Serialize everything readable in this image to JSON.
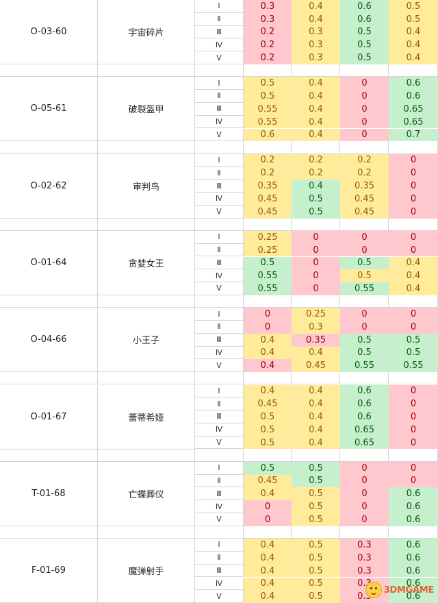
{
  "levels": [
    "Ⅰ",
    "Ⅱ",
    "Ⅲ",
    "Ⅳ",
    "Ⅴ"
  ],
  "colors": {
    "pink": "#ffc7ce",
    "yellow": "#ffeb9c",
    "green": "#c6efce"
  },
  "rows": [
    {
      "code": "O-03-60",
      "name": "宇宙碎片",
      "values": [
        [
          "0.3",
          "0.4",
          "0.6",
          "0.5"
        ],
        [
          "0.3",
          "0.4",
          "0.6",
          "0.5"
        ],
        [
          "0.2",
          "0.3",
          "0.5",
          "0.4"
        ],
        [
          "0.2",
          "0.3",
          "0.5",
          "0.4"
        ],
        [
          "0.2",
          "0.3",
          "0.5",
          "0.4"
        ]
      ],
      "colors": [
        [
          "pink",
          "yellow",
          "green",
          "yellow"
        ],
        [
          "pink",
          "yellow",
          "green",
          "yellow"
        ],
        [
          "pink",
          "yellow",
          "green",
          "yellow"
        ],
        [
          "pink",
          "yellow",
          "green",
          "yellow"
        ],
        [
          "pink",
          "yellow",
          "green",
          "yellow"
        ]
      ]
    },
    {
      "code": "O-05-61",
      "name": "破裂盔甲",
      "values": [
        [
          "0.5",
          "0.4",
          "0",
          "0.6"
        ],
        [
          "0.5",
          "0.4",
          "0",
          "0.6"
        ],
        [
          "0.55",
          "0.4",
          "0",
          "0.65"
        ],
        [
          "0.55",
          "0.4",
          "0",
          "0.65"
        ],
        [
          "0.6",
          "0.4",
          "0",
          "0.7"
        ]
      ],
      "colors": [
        [
          "yellow",
          "yellow",
          "pink",
          "green"
        ],
        [
          "yellow",
          "yellow",
          "pink",
          "green"
        ],
        [
          "yellow",
          "yellow",
          "pink",
          "green"
        ],
        [
          "yellow",
          "yellow",
          "pink",
          "green"
        ],
        [
          "yellow",
          "yellow",
          "pink",
          "green"
        ]
      ]
    },
    {
      "code": "O-02-62",
      "name": "审判鸟",
      "values": [
        [
          "0.2",
          "0.2",
          "0.2",
          "0"
        ],
        [
          "0.2",
          "0.2",
          "0.2",
          "0"
        ],
        [
          "0.35",
          "0.4",
          "0.35",
          "0"
        ],
        [
          "0.45",
          "0.5",
          "0.45",
          "0"
        ],
        [
          "0.45",
          "0.5",
          "0.45",
          "0"
        ]
      ],
      "colors": [
        [
          "yellow",
          "yellow",
          "yellow",
          "pink"
        ],
        [
          "yellow",
          "yellow",
          "yellow",
          "pink"
        ],
        [
          "yellow",
          "green",
          "yellow",
          "pink"
        ],
        [
          "yellow",
          "green",
          "yellow",
          "pink"
        ],
        [
          "yellow",
          "green",
          "yellow",
          "pink"
        ]
      ]
    },
    {
      "code": "O-01-64",
      "name": "贪婪女王",
      "values": [
        [
          "0.25",
          "0",
          "0",
          "0"
        ],
        [
          "0.25",
          "0",
          "0",
          "0"
        ],
        [
          "0.5",
          "0",
          "0.5",
          "0.4"
        ],
        [
          "0.55",
          "0",
          "0.5",
          "0.4"
        ],
        [
          "0.55",
          "0",
          "0.55",
          "0.4"
        ]
      ],
      "colors": [
        [
          "yellow",
          "pink",
          "pink",
          "pink"
        ],
        [
          "yellow",
          "pink",
          "pink",
          "pink"
        ],
        [
          "green",
          "pink",
          "green",
          "yellow"
        ],
        [
          "green",
          "pink",
          "yellow",
          "yellow"
        ],
        [
          "green",
          "pink",
          "green",
          "yellow"
        ]
      ]
    },
    {
      "code": "O-04-66",
      "name": "小王子",
      "values": [
        [
          "0",
          "0.25",
          "0",
          "0"
        ],
        [
          "0",
          "0.3",
          "0",
          "0"
        ],
        [
          "0.4",
          "0.35",
          "0.5",
          "0.5"
        ],
        [
          "0.4",
          "0.4",
          "0.5",
          "0.5"
        ],
        [
          "0.4",
          "0.45",
          "0.55",
          "0.55"
        ]
      ],
      "colors": [
        [
          "pink",
          "yellow",
          "pink",
          "pink"
        ],
        [
          "pink",
          "yellow",
          "pink",
          "pink"
        ],
        [
          "yellow",
          "pink",
          "green",
          "green"
        ],
        [
          "yellow",
          "yellow",
          "green",
          "green"
        ],
        [
          "pink",
          "yellow",
          "green",
          "green"
        ]
      ]
    },
    {
      "code": "O-01-67",
      "name": "蕾蒂希娅",
      "values": [
        [
          "0.4",
          "0.4",
          "0.6",
          "0"
        ],
        [
          "0.45",
          "0.4",
          "0.6",
          "0"
        ],
        [
          "0.5",
          "0.4",
          "0.6",
          "0"
        ],
        [
          "0.5",
          "0.4",
          "0.65",
          "0"
        ],
        [
          "0.5",
          "0.4",
          "0.65",
          "0"
        ]
      ],
      "colors": [
        [
          "yellow",
          "yellow",
          "green",
          "pink"
        ],
        [
          "yellow",
          "yellow",
          "green",
          "pink"
        ],
        [
          "yellow",
          "yellow",
          "green",
          "pink"
        ],
        [
          "yellow",
          "yellow",
          "green",
          "pink"
        ],
        [
          "yellow",
          "yellow",
          "green",
          "pink"
        ]
      ]
    },
    {
      "code": "T-01-68",
      "name": "亡蝶葬仪",
      "values": [
        [
          "0.5",
          "0.5",
          "0",
          "0"
        ],
        [
          "0.45",
          "0.5",
          "0",
          "0"
        ],
        [
          "0.4",
          "0.5",
          "0",
          "0.6"
        ],
        [
          "0",
          "0.5",
          "0",
          "0.6"
        ],
        [
          "0",
          "0.5",
          "0",
          "0.6"
        ]
      ],
      "colors": [
        [
          "green",
          "green",
          "pink",
          "pink"
        ],
        [
          "yellow",
          "green",
          "pink",
          "pink"
        ],
        [
          "yellow",
          "yellow",
          "pink",
          "green"
        ],
        [
          "pink",
          "yellow",
          "pink",
          "green"
        ],
        [
          "pink",
          "yellow",
          "pink",
          "green"
        ]
      ]
    },
    {
      "code": "F-01-69",
      "name": "魔弹射手",
      "values": [
        [
          "0.4",
          "0.5",
          "0.3",
          "0.6"
        ],
        [
          "0.4",
          "0.5",
          "0.3",
          "0.6"
        ],
        [
          "0.4",
          "0.5",
          "0.3",
          "0.6"
        ],
        [
          "0.4",
          "0.5",
          "0.3",
          "0.6"
        ],
        [
          "0.4",
          "0.5",
          "0.3",
          "0.6"
        ]
      ],
      "colors": [
        [
          "yellow",
          "yellow",
          "pink",
          "green"
        ],
        [
          "yellow",
          "yellow",
          "pink",
          "green"
        ],
        [
          "yellow",
          "yellow",
          "pink",
          "green"
        ],
        [
          "yellow",
          "yellow",
          "pink",
          "green"
        ],
        [
          "yellow",
          "yellow",
          "pink",
          "green"
        ]
      ]
    }
  ],
  "watermark": {
    "text": "3DMGAME",
    "icon": "chick-mascot-icon"
  }
}
